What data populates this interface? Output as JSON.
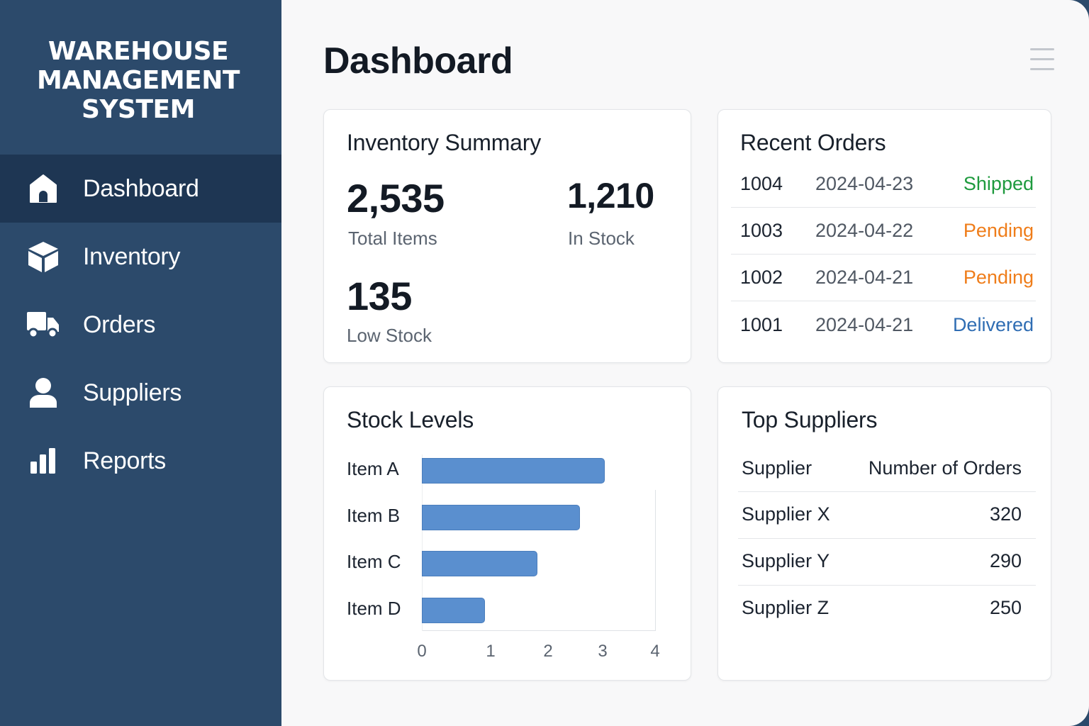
{
  "sidebar": {
    "brand_line1": "WAREHOUSE",
    "brand_line2": "MANAGEMENT",
    "brand_line3": "SYSTEM",
    "items": [
      {
        "label": "Dashboard",
        "icon": "home-icon",
        "active": true
      },
      {
        "label": "Inventory",
        "icon": "box-icon",
        "active": false
      },
      {
        "label": "Orders",
        "icon": "truck-icon",
        "active": false
      },
      {
        "label": "Suppliers",
        "icon": "user-icon",
        "active": false
      },
      {
        "label": "Reports",
        "icon": "bar-chart-icon",
        "active": false
      }
    ]
  },
  "header": {
    "title": "Dashboard",
    "menu_icon": "hamburger-menu-icon"
  },
  "inventory_summary": {
    "title": "Inventory Summary",
    "total_items": {
      "value": "2,535",
      "label": "Total Items"
    },
    "in_stock": {
      "value": "1,210",
      "label": "In Stock"
    },
    "low_stock": {
      "value": "135",
      "label": "Low Stock"
    }
  },
  "recent_orders": {
    "title": "Recent Orders",
    "rows": [
      {
        "id": "1004",
        "date": "2024-04-23",
        "status": "Shipped",
        "color": "#1e9a3e"
      },
      {
        "id": "1003",
        "date": "2024-04-22",
        "status": "Pending",
        "color": "#ef7d1a"
      },
      {
        "id": "1002",
        "date": "2024-04-21",
        "status": "Pending",
        "color": "#ef7d1a"
      },
      {
        "id": "1001",
        "date": "2024-04-21",
        "status": "Delivered",
        "color": "#2f6db3"
      }
    ]
  },
  "stock_levels": {
    "title": "Stock Levels"
  },
  "chart_data": {
    "type": "bar",
    "orientation": "horizontal",
    "categories": [
      "Item A",
      "Item B",
      "Item C",
      "Item D"
    ],
    "values": [
      3.5,
      3.07,
      2.35,
      1.45
    ],
    "xlim": [
      0,
      4
    ],
    "x_ticks": [
      "0",
      "1",
      "2",
      "3",
      "4"
    ],
    "bar_color": "#5a8fcf"
  },
  "top_suppliers": {
    "title": "Top Suppliers",
    "col_supplier": "Supplier",
    "col_orders": "Number of Orders",
    "rows": [
      {
        "name": "Supplier X",
        "orders": "320"
      },
      {
        "name": "Supplier Y",
        "orders": "290"
      },
      {
        "name": "Supplier Z",
        "orders": "250"
      }
    ]
  },
  "colors": {
    "sidebar": "#2c4a6b",
    "sidebar_active": "#1e3653",
    "accent": "#5a8fcf"
  }
}
